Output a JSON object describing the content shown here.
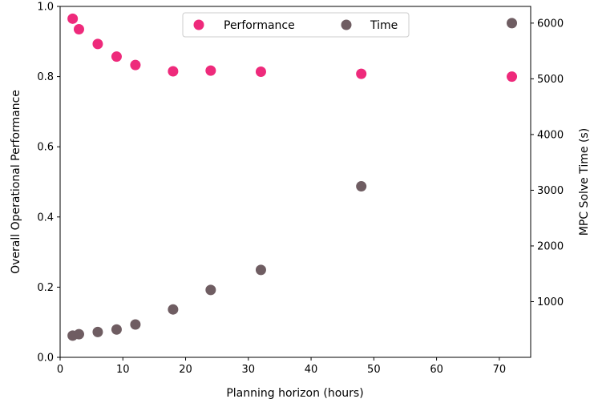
{
  "chart_data": {
    "type": "scatter",
    "x_label": "Planning horizon (hours)",
    "y_left_label": "Overall Operational Performance",
    "y_right_label": "MPC Solve Time (s)",
    "x_range": [
      0,
      75
    ],
    "y_left_range": [
      0.0,
      1.0
    ],
    "y_right_range": [
      0,
      6300
    ],
    "x_ticks": [
      "0",
      "10",
      "20",
      "30",
      "40",
      "50",
      "60",
      "70"
    ],
    "y_left_ticks": [
      "0.0",
      "0.2",
      "0.4",
      "0.6",
      "0.8",
      "1.0"
    ],
    "y_right_ticks": [
      "1000",
      "2000",
      "3000",
      "4000",
      "5000",
      "6000"
    ],
    "x_tick_values": [
      0,
      10,
      20,
      30,
      40,
      50,
      60,
      70
    ],
    "y_left_tick_values": [
      0.0,
      0.2,
      0.4,
      0.6,
      0.8,
      1.0
    ],
    "y_right_tick_values": [
      1000,
      2000,
      3000,
      4000,
      5000,
      6000
    ],
    "grid": false,
    "legend_position": "top-center",
    "series": [
      {
        "name": "Performance",
        "axis": "left",
        "color": "#ee2a7b",
        "x": [
          2,
          3,
          6,
          9,
          12,
          18,
          24,
          32,
          48,
          72
        ],
        "y": [
          0.965,
          0.935,
          0.893,
          0.857,
          0.833,
          0.815,
          0.817,
          0.814,
          0.808,
          0.8
        ]
      },
      {
        "name": "Time",
        "axis": "right",
        "color": "#6f5d62",
        "x": [
          2,
          3,
          6,
          9,
          12,
          18,
          24,
          32,
          48,
          72
        ],
        "y": [
          390,
          415,
          455,
          500,
          590,
          860,
          1210,
          1570,
          3070,
          6000
        ]
      }
    ]
  }
}
